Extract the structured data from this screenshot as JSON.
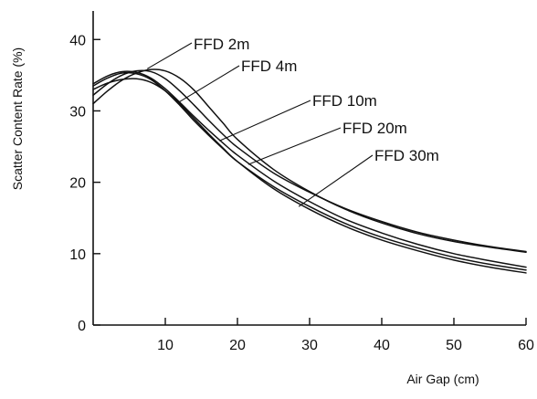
{
  "chart_data": {
    "type": "line",
    "title": "",
    "xlabel": "Air Gap (cm)",
    "ylabel": "Scatter Content Rate (%)",
    "xlim": [
      0,
      60
    ],
    "ylim": [
      0,
      44
    ],
    "xticks": [
      10,
      20,
      30,
      40,
      50,
      60
    ],
    "yticks": [
      0,
      10,
      20,
      30,
      40
    ],
    "grid": false,
    "legend": "inline labels with leader lines",
    "line_color": "#111111",
    "series": [
      {
        "name": "FFD 2m",
        "x": [
          0,
          2,
          4,
          6,
          8,
          10,
          12,
          14,
          16,
          18,
          20,
          25,
          30,
          35,
          40,
          45,
          50,
          55,
          60
        ],
        "y": [
          31.0,
          32.8,
          34.3,
          35.3,
          35.8,
          35.6,
          34.6,
          32.9,
          30.6,
          28.3,
          26.0,
          21.8,
          18.7,
          16.2,
          14.3,
          12.8,
          11.7,
          10.9,
          10.2
        ]
      },
      {
        "name": "FFD 4m",
        "x": [
          0,
          2,
          4,
          6,
          8,
          10,
          12,
          14,
          16,
          18,
          20,
          25,
          30,
          35,
          40,
          45,
          50,
          55,
          60
        ],
        "y": [
          32.2,
          33.8,
          35.0,
          35.6,
          35.5,
          34.5,
          32.8,
          30.8,
          28.7,
          26.7,
          24.9,
          21.3,
          18.6,
          16.3,
          14.5,
          13.0,
          11.9,
          11.0,
          10.3
        ]
      },
      {
        "name": "FFD 10m",
        "x": [
          0,
          2,
          4,
          6,
          8,
          10,
          12,
          14,
          16,
          18,
          20,
          25,
          30,
          35,
          40,
          45,
          50,
          55,
          60
        ],
        "y": [
          33.8,
          34.9,
          35.5,
          35.4,
          34.6,
          33.1,
          31.2,
          29.2,
          27.3,
          25.5,
          23.8,
          20.2,
          17.3,
          14.8,
          12.9,
          11.3,
          10.0,
          9.0,
          8.1
        ]
      },
      {
        "name": "FFD 20m",
        "x": [
          0,
          2,
          4,
          6,
          8,
          10,
          12,
          14,
          16,
          18,
          20,
          25,
          30,
          35,
          40,
          45,
          50,
          55,
          60
        ],
        "y": [
          33.5,
          34.6,
          35.3,
          35.2,
          34.4,
          32.8,
          30.8,
          28.6,
          26.6,
          24.7,
          22.9,
          19.4,
          16.6,
          14.2,
          12.3,
          10.8,
          9.5,
          8.5,
          7.7
        ]
      },
      {
        "name": "FFD 30m",
        "x": [
          0,
          2,
          4,
          6,
          8,
          10,
          12,
          14,
          16,
          18,
          20,
          25,
          30,
          35,
          40,
          45,
          50,
          55,
          60
        ],
        "y": [
          33.0,
          33.9,
          34.4,
          34.5,
          34.0,
          32.8,
          31.0,
          28.9,
          26.8,
          24.8,
          22.9,
          19.1,
          16.2,
          13.8,
          11.9,
          10.4,
          9.1,
          8.1,
          7.3
        ]
      }
    ],
    "series_label_anchor_points": [
      {
        "x": 7.5,
        "y": 35.9
      },
      {
        "x": 12.0,
        "y": 31.3
      },
      {
        "x": 17.5,
        "y": 25.8
      },
      {
        "x": 21.5,
        "y": 22.5
      },
      {
        "x": 28.5,
        "y": 16.6
      }
    ]
  }
}
